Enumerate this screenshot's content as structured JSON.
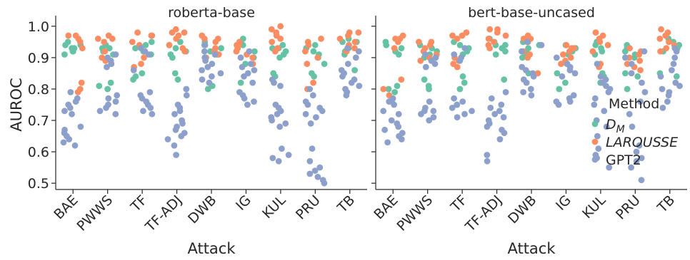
{
  "chart_data": {
    "type": "scatter",
    "style": "strip",
    "ylabel": "AUROC",
    "xlabel": "Attack",
    "ylim": [
      0.48,
      1.02
    ],
    "yticks": [
      0.5,
      0.6,
      0.7,
      0.8,
      0.9,
      1.0
    ],
    "ytick_labels": [
      "0.5",
      "0.6",
      "0.7",
      "0.8",
      "0.9",
      "1.0"
    ],
    "categories": [
      "BAE",
      "PWWS",
      "TF",
      "TF-ADJ",
      "DWB",
      "IG",
      "KUL",
      "PRU",
      "TB"
    ],
    "grid": false,
    "legend": {
      "title": "Method",
      "placement": "center-right",
      "entries": [
        "D_M",
        "LAROUSSE",
        "GPT2"
      ]
    },
    "colors": {
      "D_M": "#66c2a5",
      "LAROUSSE": "#fc8d62",
      "GPT2": "#8da0cb",
      "axis": "#262626"
    },
    "panels": [
      {
        "title": "roberta-base",
        "series": [
          {
            "name": "D_M",
            "values": [
              [
                0.92,
                0.93,
                0.94,
                0.95,
                0.93,
                0.92,
                0.91,
                0.94
              ],
              [
                0.93,
                0.94,
                0.92,
                0.91,
                0.82,
                0.81,
                0.8,
                0.93
              ],
              [
                0.94,
                0.93,
                0.92,
                0.85,
                0.84,
                0.83,
                0.91,
                0.95
              ],
              [
                0.94,
                0.93,
                0.92,
                0.91,
                0.85,
                0.83,
                0.95,
                0.9
              ],
              [
                0.95,
                0.93,
                0.92,
                0.9,
                0.81,
                0.8,
                0.94,
                0.91
              ],
              [
                0.96,
                0.94,
                0.93,
                0.92,
                0.82,
                0.9,
                0.88,
                0.95
              ],
              [
                0.94,
                0.93,
                0.92,
                0.91,
                0.85,
                0.84,
                0.9,
                0.93
              ],
              [
                0.93,
                0.92,
                0.91,
                0.9,
                0.88,
                0.85,
                0.84,
                0.94
              ],
              [
                0.96,
                0.95,
                0.94,
                0.93,
                0.92,
                0.91,
                0.86,
                0.95
              ]
            ]
          },
          {
            "name": "LAROUSSE",
            "values": [
              [
                0.97,
                0.96,
                0.95,
                0.93,
                0.82,
                0.8,
                0.79,
                0.97
              ],
              [
                0.97,
                0.96,
                0.95,
                0.92,
                0.9,
                0.89,
                0.88,
                0.96
              ],
              [
                0.98,
                0.97,
                0.95,
                0.94,
                0.9,
                0.88,
                0.87,
                0.97
              ],
              [
                0.99,
                0.98,
                0.97,
                0.96,
                0.94,
                0.93,
                0.92,
                0.98
              ],
              [
                0.97,
                0.96,
                0.95,
                0.93,
                0.92,
                0.91,
                0.9,
                0.96
              ],
              [
                0.95,
                0.94,
                0.93,
                0.92,
                0.91,
                0.9,
                0.88,
                0.94
              ],
              [
                1.0,
                0.99,
                0.98,
                0.96,
                0.95,
                0.93,
                0.92,
                0.97
              ],
              [
                0.96,
                0.95,
                0.94,
                0.92,
                0.9,
                0.88,
                0.82,
                0.8
              ],
              [
                0.98,
                0.97,
                0.96,
                0.95,
                0.94,
                0.93,
                0.92,
                0.98
              ]
            ]
          },
          {
            "name": "GPT2",
            "values": [
              [
                0.77,
                0.76,
                0.75,
                0.74,
                0.73,
                0.68,
                0.67,
                0.66,
                0.65,
                0.64,
                0.63,
                0.62,
                0.72,
                0.79
              ],
              [
                0.77,
                0.76,
                0.75,
                0.74,
                0.73,
                0.72,
                0.89,
                0.9,
                0.91,
                0.88,
                0.87,
                0.78
              ],
              [
                0.79,
                0.78,
                0.77,
                0.76,
                0.75,
                0.74,
                0.73,
                0.72,
                0.92,
                0.91,
                0.93,
                0.86
              ],
              [
                0.8,
                0.75,
                0.74,
                0.72,
                0.7,
                0.69,
                0.68,
                0.67,
                0.66,
                0.65,
                0.64,
                0.62,
                0.59,
                0.78,
                0.73
              ],
              [
                0.92,
                0.91,
                0.9,
                0.89,
                0.88,
                0.87,
                0.86,
                0.85,
                0.84,
                0.83,
                0.82,
                0.94
              ],
              [
                0.92,
                0.9,
                0.88,
                0.87,
                0.86,
                0.85,
                0.84,
                0.82,
                0.79,
                0.78,
                0.77,
                0.76,
                0.75
              ],
              [
                0.83,
                0.82,
                0.81,
                0.75,
                0.74,
                0.73,
                0.72,
                0.71,
                0.7,
                0.69,
                0.68,
                0.61,
                0.59,
                0.58,
                0.57
              ],
              [
                0.8,
                0.78,
                0.76,
                0.75,
                0.74,
                0.73,
                0.72,
                0.71,
                0.69,
                0.61,
                0.57,
                0.55,
                0.54,
                0.53,
                0.52,
                0.51,
                0.5
              ],
              [
                0.93,
                0.92,
                0.9,
                0.88,
                0.86,
                0.85,
                0.84,
                0.83,
                0.82,
                0.81,
                0.8,
                0.79,
                0.78
              ]
            ]
          }
        ]
      },
      {
        "title": "bert-base-uncased",
        "series": [
          {
            "name": "D_M",
            "values": [
              [
                0.94,
                0.93,
                0.92,
                0.91,
                0.81,
                0.8,
                0.79,
                0.95
              ],
              [
                0.93,
                0.92,
                0.91,
                0.9,
                0.83,
                0.81,
                0.8,
                0.94
              ],
              [
                0.94,
                0.93,
                0.92,
                0.91,
                0.84,
                0.82,
                0.8,
                0.95
              ],
              [
                0.96,
                0.95,
                0.94,
                0.93,
                0.92,
                0.91,
                0.83,
                0.94
              ],
              [
                0.95,
                0.94,
                0.93,
                0.92,
                0.91,
                0.9,
                0.85,
                0.96
              ],
              [
                0.93,
                0.92,
                0.91,
                0.88,
                0.85,
                0.82,
                0.8,
                0.94
              ],
              [
                0.95,
                0.94,
                0.93,
                0.92,
                0.91,
                0.85,
                0.84,
                0.82
              ],
              [
                0.93,
                0.92,
                0.91,
                0.9,
                0.85,
                0.84,
                0.8,
                0.94
              ],
              [
                0.97,
                0.96,
                0.95,
                0.94,
                0.93,
                0.92,
                0.85,
                0.84
              ]
            ]
          },
          {
            "name": "LAROUSSE",
            "values": [
              [
                0.97,
                0.96,
                0.95,
                0.93,
                0.83,
                0.8,
                0.78,
                0.96
              ],
              [
                0.95,
                0.94,
                0.93,
                0.92,
                0.91,
                0.9,
                0.89,
                0.95
              ],
              [
                0.98,
                0.97,
                0.96,
                0.9,
                0.89,
                0.88,
                0.87,
                0.97
              ],
              [
                0.99,
                0.98,
                0.97,
                0.96,
                0.95,
                0.94,
                0.93,
                0.99
              ],
              [
                0.97,
                0.96,
                0.95,
                0.92,
                0.91,
                0.9,
                0.85,
                0.96
              ],
              [
                0.94,
                0.93,
                0.92,
                0.91,
                0.9,
                0.89,
                0.88,
                0.93
              ],
              [
                0.98,
                0.97,
                0.96,
                0.95,
                0.94,
                0.92,
                0.88,
                0.87
              ],
              [
                0.93,
                0.92,
                0.91,
                0.9,
                0.89,
                0.88,
                0.87,
                0.86
              ],
              [
                0.99,
                0.98,
                0.97,
                0.96,
                0.95,
                0.94,
                0.93,
                0.92
              ]
            ]
          },
          {
            "name": "GPT2",
            "values": [
              [
                0.77,
                0.76,
                0.75,
                0.73,
                0.72,
                0.7,
                0.69,
                0.68,
                0.67,
                0.66,
                0.65,
                0.64,
                0.63,
                0.76
              ],
              [
                0.91,
                0.9,
                0.89,
                0.88,
                0.87,
                0.74,
                0.73,
                0.72,
                0.71,
                0.7,
                0.76,
                0.73
              ],
              [
                0.93,
                0.91,
                0.9,
                0.89,
                0.77,
                0.76,
                0.75,
                0.74,
                0.73,
                0.72,
                0.71,
                0.75
              ],
              [
                0.79,
                0.77,
                0.75,
                0.73,
                0.72,
                0.71,
                0.7,
                0.69,
                0.68,
                0.67,
                0.66,
                0.64,
                0.59,
                0.57,
                0.74
              ],
              [
                0.95,
                0.94,
                0.92,
                0.87,
                0.86,
                0.85,
                0.84,
                0.83,
                0.82,
                0.8,
                0.79,
                0.78
              ],
              [
                0.9,
                0.88,
                0.87,
                0.86,
                0.85,
                0.84,
                0.78,
                0.77,
                0.76,
                0.76,
                0.75
              ],
              [
                0.88,
                0.84,
                0.83,
                0.82,
                0.81,
                0.8,
                0.79,
                0.77,
                0.75,
                0.73,
                0.7,
                0.68,
                0.65,
                0.61,
                0.59,
                0.58,
                0.55
              ],
              [
                0.92,
                0.9,
                0.88,
                0.85,
                0.82,
                0.79,
                0.76,
                0.72,
                0.68,
                0.62,
                0.6,
                0.58,
                0.57,
                0.55,
                0.51
              ],
              [
                0.93,
                0.92,
                0.9,
                0.88,
                0.86,
                0.84,
                0.82,
                0.81,
                0.8,
                0.79,
                0.78,
                0.76,
                0.74
              ]
            ]
          }
        ]
      }
    ]
  }
}
